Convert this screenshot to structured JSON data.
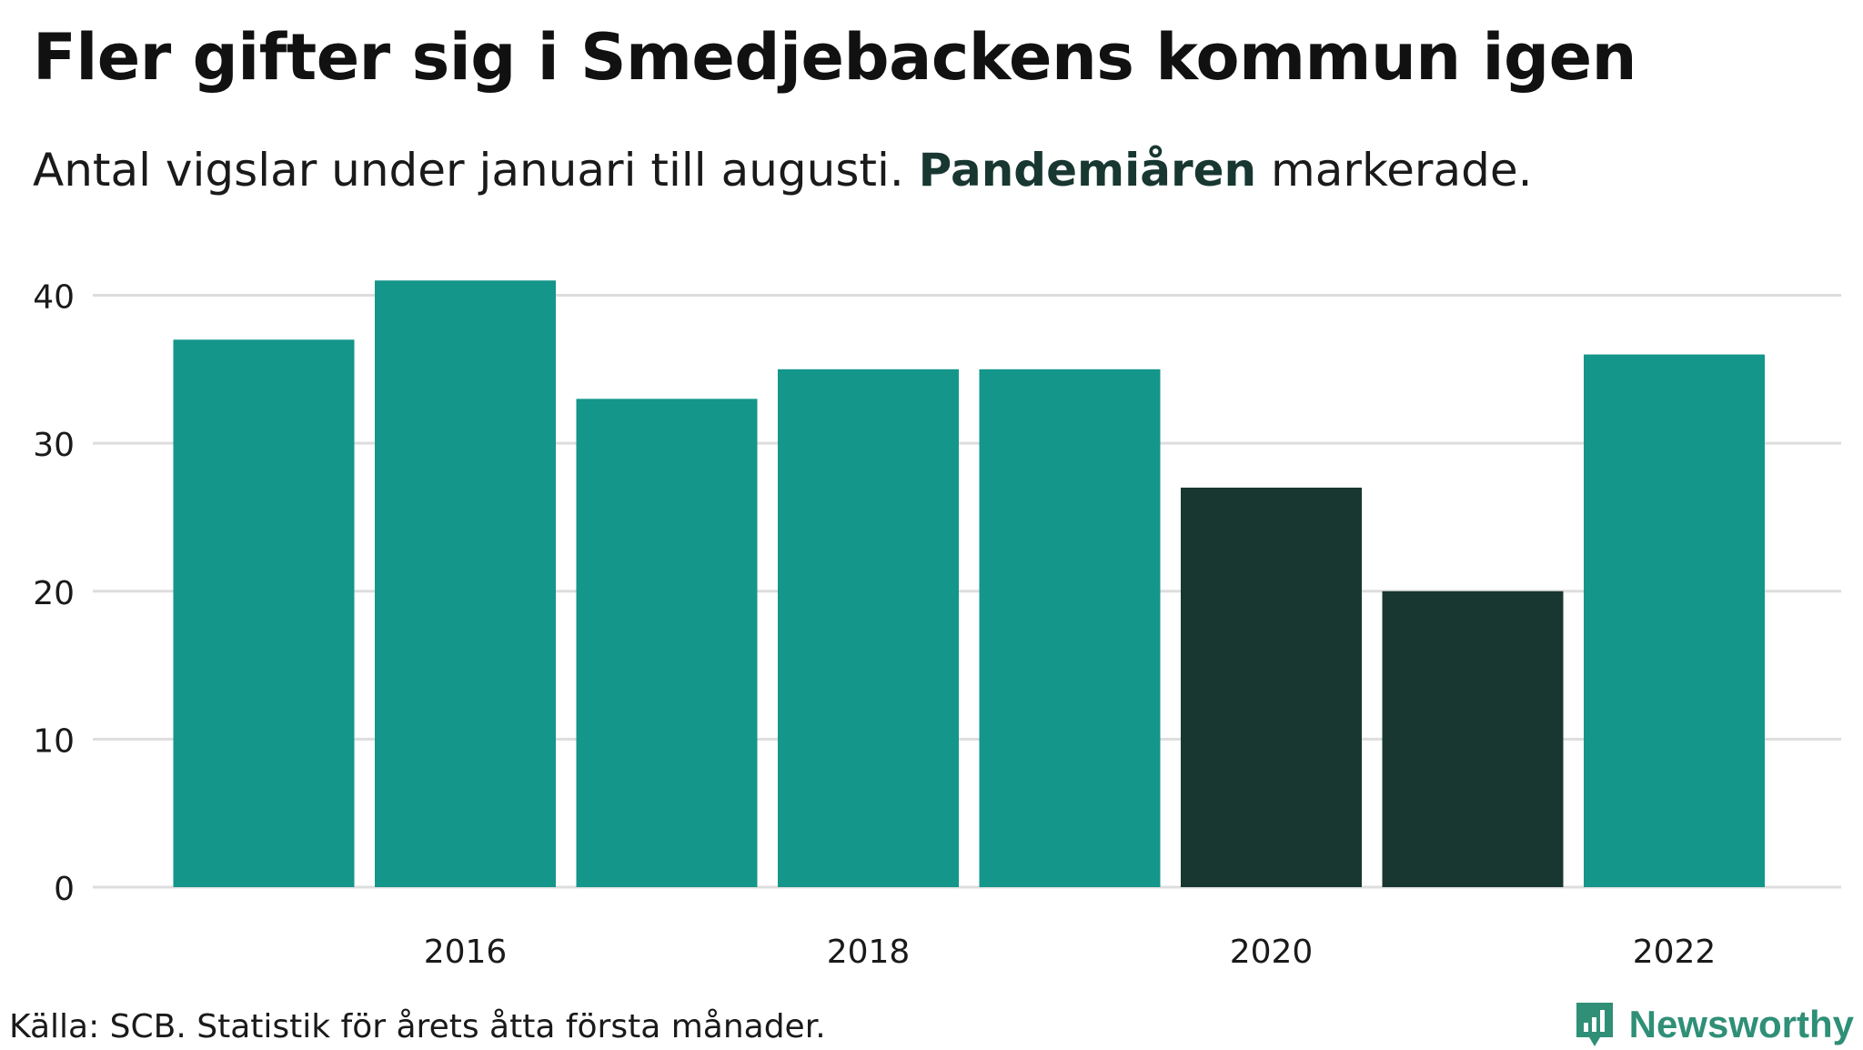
{
  "title": "Fler gifter sig i Smedjebackens kommun igen",
  "subtitle": {
    "before": "Antal vigslar under januari till augusti. ",
    "highlight": "Pandemiåren",
    "after": " markerade."
  },
  "source": "Källa: SCB. Statistik för årets åtta första månader.",
  "brand": {
    "name": "Newsworthy",
    "icon": "bar-chart-speech-bubble-icon"
  },
  "colors": {
    "normal": "#14968a",
    "pandemic": "#183731",
    "highlight_text": "#183731",
    "grid": "#dddddd",
    "brand": "#2f8f77"
  },
  "chart_data": {
    "type": "bar",
    "title": "Fler gifter sig i Smedjebackens kommun igen",
    "subtitle": "Antal vigslar under januari till augusti. Pandemiåren markerade.",
    "xlabel": "",
    "ylabel": "",
    "categories": [
      2015,
      2016,
      2017,
      2018,
      2019,
      2020,
      2021,
      2022
    ],
    "values": [
      37,
      41,
      33,
      35,
      35,
      27,
      20,
      36
    ],
    "pandemic": [
      false,
      false,
      false,
      false,
      false,
      true,
      true,
      false
    ],
    "ylim": [
      0,
      42
    ],
    "yticks": [
      0,
      10,
      20,
      30,
      40
    ],
    "xticks": [
      2016,
      2018,
      2020,
      2022
    ],
    "grid": true,
    "legend": "none"
  }
}
